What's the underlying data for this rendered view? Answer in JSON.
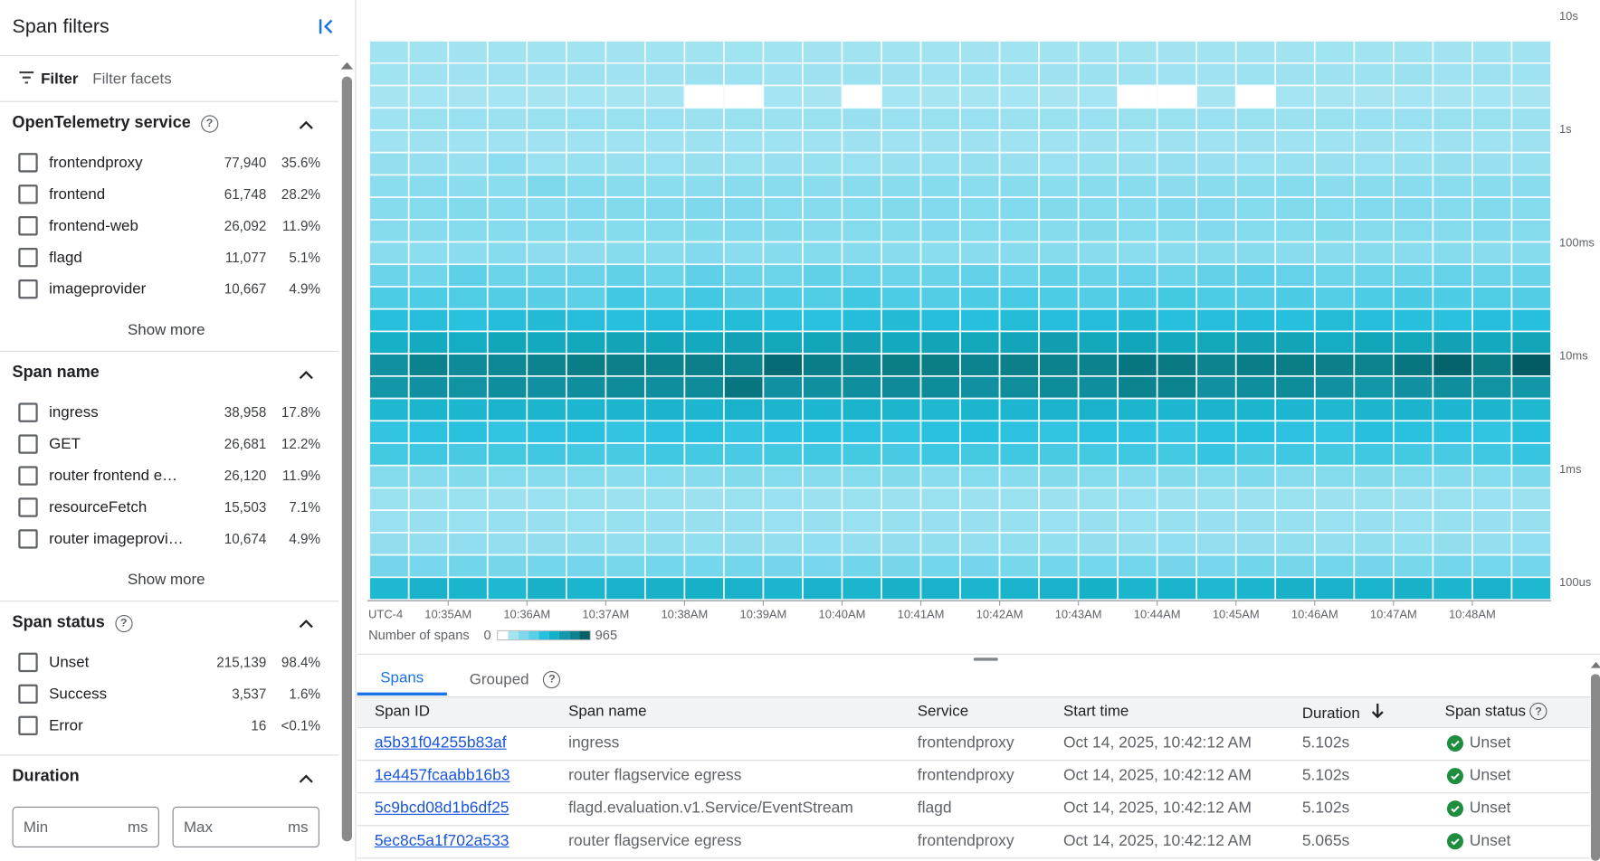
{
  "left_panel": {
    "title": "Span filters",
    "filter_label": "Filter",
    "filter_placeholder": "Filter facets",
    "sections": [
      {
        "title": "OpenTelemetry service",
        "has_help": true,
        "items": [
          {
            "label": "frontendproxy",
            "count": "77,940",
            "pct": "35.6%"
          },
          {
            "label": "frontend",
            "count": "61,748",
            "pct": "28.2%"
          },
          {
            "label": "frontend-web",
            "count": "26,092",
            "pct": "11.9%"
          },
          {
            "label": "flagd",
            "count": "11,077",
            "pct": "5.1%"
          },
          {
            "label": "imageprovider",
            "count": "10,667",
            "pct": "4.9%"
          }
        ],
        "show_more": "Show more"
      },
      {
        "title": "Span name",
        "has_help": false,
        "items": [
          {
            "label": "ingress",
            "count": "38,958",
            "pct": "17.8%"
          },
          {
            "label": "GET",
            "count": "26,681",
            "pct": "12.2%"
          },
          {
            "label": "router frontend egress",
            "count": "26,120",
            "pct": "11.9%"
          },
          {
            "label": "resourceFetch",
            "count": "15,503",
            "pct": "7.1%"
          },
          {
            "label": "router imageprovider …",
            "count": "10,674",
            "pct": "4.9%"
          }
        ],
        "show_more": "Show more"
      },
      {
        "title": "Span status",
        "has_help": true,
        "items": [
          {
            "label": "Unset",
            "count": "215,139",
            "pct": "98.4%"
          },
          {
            "label": "Success",
            "count": "3,537",
            "pct": "1.6%"
          },
          {
            "label": "Error",
            "count": "16",
            "pct": "<0.1%"
          }
        ]
      },
      {
        "title": "Duration",
        "has_help": false
      }
    ],
    "duration": {
      "min_placeholder": "Min",
      "max_placeholder": "Max",
      "unit": "ms"
    }
  },
  "chart_data": {
    "type": "heatmap",
    "timezone_label": "UTC-4",
    "x_start": "10:34:00 AM",
    "x_end": "10:49:00 AM",
    "x_bin_seconds": 30,
    "x_ticks": [
      "10:35AM",
      "10:36AM",
      "10:37AM",
      "10:38AM",
      "10:39AM",
      "10:40AM",
      "10:41AM",
      "10:42AM",
      "10:43AM",
      "10:44AM",
      "10:45AM",
      "10:46AM",
      "10:47AM",
      "10:48AM"
    ],
    "y_scale": "log",
    "y_range_seconds": [
      7e-05,
      6
    ],
    "y_ticks": [
      {
        "label": "10s",
        "seconds": 10
      },
      {
        "label": "1s",
        "seconds": 1
      },
      {
        "label": "100ms",
        "seconds": 0.1
      },
      {
        "label": "10ms",
        "seconds": 0.01
      },
      {
        "label": "1ms",
        "seconds": 0.001
      },
      {
        "label": "100us",
        "seconds": 0.0001
      }
    ],
    "legend": {
      "label": "Number of spans",
      "min": 0,
      "max": 965
    },
    "color_scale": [
      "#ffffff",
      "#a4e4f1",
      "#7ed9ec",
      "#57cfe6",
      "#26c0de",
      "#12b0c9",
      "#1399ab",
      "#0b8390",
      "#045f67"
    ],
    "rows_top_to_bottom": [
      [
        38,
        40,
        37,
        39,
        41,
        38,
        36,
        39,
        40,
        42,
        38,
        37,
        41,
        39,
        40,
        36,
        38,
        40,
        41,
        39,
        37,
        40,
        38,
        39,
        42,
        40,
        38,
        37,
        39,
        40
      ],
      [
        42,
        44,
        43,
        45,
        44,
        46,
        43,
        47,
        50,
        48,
        45,
        46,
        52,
        47,
        44,
        48,
        45,
        46,
        50,
        47,
        44,
        45,
        48,
        46,
        47,
        49,
        50,
        45,
        46,
        44
      ],
      [
        30,
        31,
        29,
        32,
        30,
        31,
        30,
        29,
        null,
        null,
        31,
        30,
        null,
        32,
        30,
        29,
        31,
        30,
        31,
        null,
        null,
        30,
        null,
        31,
        29,
        30,
        32,
        30,
        31,
        30
      ],
      [
        45,
        55,
        58,
        50,
        56,
        58,
        55,
        57,
        53,
        56,
        54,
        55,
        60,
        58,
        55,
        57,
        54,
        55,
        58,
        56,
        55,
        57,
        56,
        52,
        55,
        57,
        58,
        56,
        55,
        54
      ],
      [
        44,
        46,
        45,
        44,
        43,
        44,
        45,
        44,
        46,
        45,
        45,
        44,
        46,
        45,
        47,
        46,
        44,
        45,
        46,
        45,
        47,
        44,
        46,
        45,
        44,
        46,
        45,
        47,
        44,
        46
      ],
      [
        70,
        65,
        60,
        85,
        58,
        62,
        60,
        58,
        60,
        55,
        60,
        62,
        58,
        60,
        62,
        65,
        60,
        58,
        62,
        60,
        64,
        60,
        58,
        62,
        60,
        58,
        62,
        64,
        60,
        62
      ],
      [
        88,
        92,
        86,
        88,
        110,
        95,
        90,
        88,
        86,
        92,
        90,
        88,
        90,
        92,
        96,
        88,
        90,
        86,
        92,
        90,
        88,
        92,
        90,
        94,
        88,
        92,
        90,
        88,
        92,
        90
      ],
      [
        95,
        98,
        105,
        96,
        92,
        102,
        104,
        108,
        110,
        108,
        98,
        95,
        100,
        104,
        102,
        98,
        106,
        104,
        100,
        96,
        108,
        102,
        98,
        104,
        100,
        106,
        102,
        98,
        104,
        100
      ],
      [
        95,
        96,
        98,
        96,
        100,
        94,
        98,
        100,
        104,
        106,
        104,
        96,
        98,
        100,
        102,
        98,
        100,
        96,
        104,
        98,
        100,
        102,
        98,
        100,
        104,
        96,
        100,
        98,
        102,
        100
      ],
      [
        92,
        85,
        88,
        96,
        82,
        80,
        96,
        90,
        102,
        88,
        94,
        100,
        96,
        90,
        88,
        92,
        96,
        94,
        90,
        88,
        92,
        96,
        94,
        90,
        92,
        94,
        90,
        96,
        92,
        94
      ],
      [
        150,
        135,
        175,
        150,
        145,
        150,
        170,
        145,
        175,
        150,
        145,
        170,
        160,
        150,
        155,
        165,
        150,
        170,
        155,
        160,
        150,
        165,
        175,
        160,
        145,
        150,
        155,
        160,
        150,
        155
      ],
      [
        210,
        210,
        205,
        200,
        190,
        180,
        235,
        210,
        235,
        190,
        210,
        205,
        240,
        210,
        200,
        215,
        225,
        210,
        200,
        215,
        230,
        210,
        200,
        215,
        195,
        210,
        220,
        210,
        205,
        200
      ],
      [
        300,
        310,
        290,
        320,
        340,
        310,
        300,
        320,
        310,
        330,
        300,
        290,
        320,
        340,
        310,
        300,
        330,
        310,
        320,
        340,
        300,
        310,
        320,
        300,
        330,
        310,
        300,
        290,
        310,
        300
      ],
      [
        420,
        450,
        440,
        480,
        460,
        470,
        490,
        480,
        460,
        500,
        470,
        480,
        500,
        460,
        490,
        470,
        480,
        520,
        470,
        480,
        460,
        470,
        500,
        490,
        440,
        480,
        470,
        500,
        460,
        480
      ],
      [
        600,
        720,
        650,
        680,
        700,
        760,
        740,
        720,
        740,
        700,
        870,
        750,
        700,
        760,
        760,
        700,
        740,
        720,
        720,
        800,
        780,
        700,
        750,
        760,
        740,
        700,
        800,
        920,
        760,
        965
      ],
      [
        560,
        600,
        580,
        620,
        600,
        620,
        640,
        620,
        640,
        800,
        600,
        610,
        620,
        650,
        640,
        600,
        630,
        640,
        620,
        700,
        700,
        600,
        620,
        640,
        600,
        560,
        600,
        620,
        580,
        560
      ],
      [
        360,
        380,
        370,
        390,
        380,
        370,
        380,
        390,
        370,
        400,
        380,
        370,
        390,
        380,
        360,
        380,
        370,
        390,
        400,
        380,
        370,
        390,
        380,
        370,
        360,
        380,
        390,
        370,
        380,
        360
      ],
      [
        270,
        280,
        290,
        270,
        280,
        290,
        270,
        280,
        290,
        270,
        280,
        290,
        280,
        270,
        290,
        300,
        280,
        270,
        290,
        280,
        270,
        290,
        300,
        280,
        270,
        300,
        290,
        280,
        270,
        300
      ],
      [
        230,
        240,
        220,
        230,
        240,
        230,
        220,
        240,
        230,
        220,
        230,
        240,
        230,
        220,
        250,
        230,
        240,
        220,
        230,
        240,
        230,
        260,
        220,
        240,
        230,
        240,
        230,
        220,
        240,
        260
      ],
      [
        100,
        95,
        105,
        100,
        95,
        100,
        90,
        100,
        95,
        105,
        100,
        95,
        100,
        105,
        90,
        100,
        95,
        105,
        100,
        95,
        105,
        100,
        110,
        95,
        100,
        105,
        100,
        95,
        100,
        110
      ],
      [
        55,
        52,
        56,
        54,
        58,
        55,
        52,
        56,
        54,
        55,
        57,
        53,
        56,
        54,
        55,
        52,
        56,
        54,
        55,
        57,
        53,
        56,
        54,
        55,
        52,
        56,
        54,
        55,
        57,
        53
      ],
      [
        58,
        60,
        57,
        62,
        60,
        58,
        61,
        59,
        60,
        62,
        58,
        60,
        57,
        61,
        60,
        59,
        62,
        58,
        60,
        57,
        61,
        60,
        59,
        62,
        58,
        60,
        57,
        61,
        60,
        59
      ],
      [
        72,
        70,
        75,
        68,
        72,
        74,
        70,
        73,
        71,
        72,
        70,
        75,
        68,
        72,
        74,
        70,
        73,
        71,
        72,
        70,
        75,
        68,
        72,
        74,
        70,
        73,
        71,
        72,
        70,
        75
      ],
      [
        130,
        125,
        135,
        128,
        132,
        130,
        127,
        134,
        129,
        131,
        130,
        125,
        135,
        128,
        132,
        130,
        127,
        134,
        129,
        131,
        130,
        125,
        135,
        128,
        132,
        130,
        127,
        134,
        129,
        131
      ],
      [
        360,
        400,
        380,
        360,
        410,
        380,
        400,
        410,
        420,
        400,
        380,
        400,
        380,
        410,
        400,
        380,
        390,
        400,
        420,
        380,
        390,
        360,
        380,
        410,
        400,
        390,
        410,
        380,
        400,
        360
      ]
    ]
  },
  "tabs": [
    {
      "label": "Spans",
      "active": true
    },
    {
      "label": "Grouped",
      "active": false
    }
  ],
  "table": {
    "columns": [
      "Span ID",
      "Span name",
      "Service",
      "Start time",
      "Duration",
      "Span status"
    ],
    "sort_column": "Duration",
    "sort_direction": "descending",
    "rows": [
      {
        "id": "a5b31f04255b83af",
        "name": "ingress",
        "service": "frontendproxy",
        "start": "Oct 14, 2025, 10:42:12 AM",
        "duration": "5.102s",
        "status": "Unset"
      },
      {
        "id": "1e4457fcaabb16b3",
        "name": "router flagservice egress",
        "service": "frontendproxy",
        "start": "Oct 14, 2025, 10:42:12 AM",
        "duration": "5.102s",
        "status": "Unset"
      },
      {
        "id": "5c9bcd08d1b6df25",
        "name": "flagd.evaluation.v1.Service/EventStream",
        "service": "flagd",
        "start": "Oct 14, 2025, 10:42:12 AM",
        "duration": "5.102s",
        "status": "Unset"
      },
      {
        "id": "5ec8c5a1f702a533",
        "name": "router flagservice egress",
        "service": "frontendproxy",
        "start": "Oct 14, 2025, 10:42:12 AM",
        "duration": "5.065s",
        "status": "Unset"
      }
    ]
  },
  "colors": {
    "accent": "#1a73e8",
    "link": "#1a56db",
    "status_ok": "#1e8e3e"
  }
}
